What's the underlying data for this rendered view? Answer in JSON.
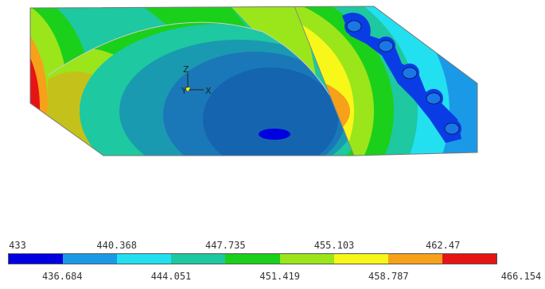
{
  "axis_triad": {
    "z_label": "Z",
    "y_label": "Y",
    "x_label": "X"
  },
  "legend": {
    "colors": [
      "#0000e0",
      "#1a9ae6",
      "#22e0f0",
      "#1ec8a0",
      "#1bd01b",
      "#9ae61a",
      "#f7f71a",
      "#f7a11a",
      "#e61414"
    ],
    "values_top": [
      "433",
      "440.368",
      "447.735",
      "455.103",
      "462.47"
    ],
    "values_bottom": [
      "436.684",
      "444.051",
      "451.419",
      "458.787",
      "466.154"
    ]
  }
}
